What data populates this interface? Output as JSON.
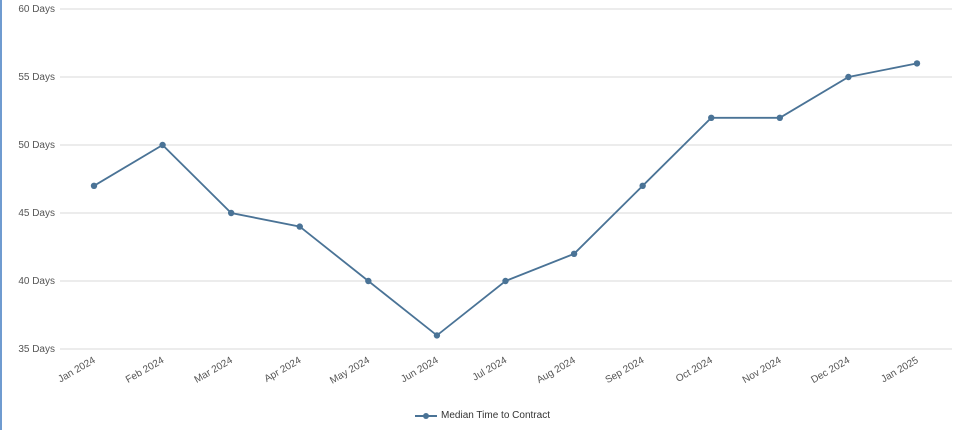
{
  "chart_data": {
    "type": "line",
    "title": "",
    "xlabel": "",
    "ylabel": "",
    "categories": [
      "Jan 2024",
      "Feb 2024",
      "Mar 2024",
      "Apr 2024",
      "May 2024",
      "Jun 2024",
      "Jul 2024",
      "Aug 2024",
      "Sep 2024",
      "Oct 2024",
      "Nov 2024",
      "Dec 2024",
      "Jan 2025"
    ],
    "series": [
      {
        "name": "Median Time to Contract",
        "values": [
          47,
          50,
          45,
          44,
          40,
          36,
          40,
          42,
          47,
          52,
          52,
          55,
          56
        ],
        "color": "#4a7396"
      }
    ],
    "ylim": [
      35,
      60
    ],
    "yticks": [
      "35 Days",
      "40 Days",
      "45 Days",
      "50 Days",
      "55 Days",
      "60 Days"
    ],
    "grid": true,
    "legend_position": "bottom-center",
    "colors": {
      "gridline": "#d9d9d9",
      "axis_text": "#555555",
      "line": "#4a7396"
    }
  }
}
